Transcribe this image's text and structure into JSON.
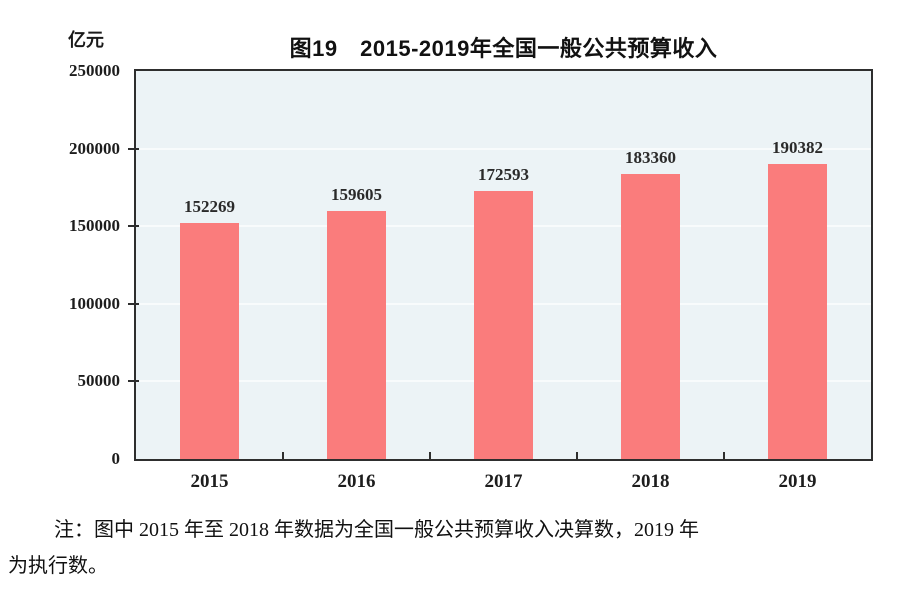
{
  "chart": {
    "unit_label": "亿元",
    "title": "图19　2015-2019年全国一般公共预算收入",
    "note": {
      "line1": "注：图中 2015 年至 2018 年数据为全国一般公共预算收入决算数，2019 年",
      "line2": "为执行数。"
    }
  },
  "chart_data": {
    "type": "bar",
    "title": "图19 2015-2019年全国一般公共预算收入",
    "unit": "亿元",
    "categories": [
      "2015",
      "2016",
      "2017",
      "2018",
      "2019"
    ],
    "values": [
      152269,
      159605,
      172593,
      183360,
      190382
    ],
    "xlabel": "",
    "ylabel": "亿元",
    "ylim": [
      0,
      250000
    ],
    "yticks": [
      0,
      50000,
      100000,
      150000,
      200000,
      250000
    ],
    "grid": true,
    "legend": "none",
    "bar_color": "#fa7c7c",
    "plot_background": "#ecf3f6",
    "gridline_color": "#f8fbfc",
    "note": "注：图中 2015 年至 2018 年数据为全国一般公共预算收入决算数，2019 年为执行数。"
  }
}
